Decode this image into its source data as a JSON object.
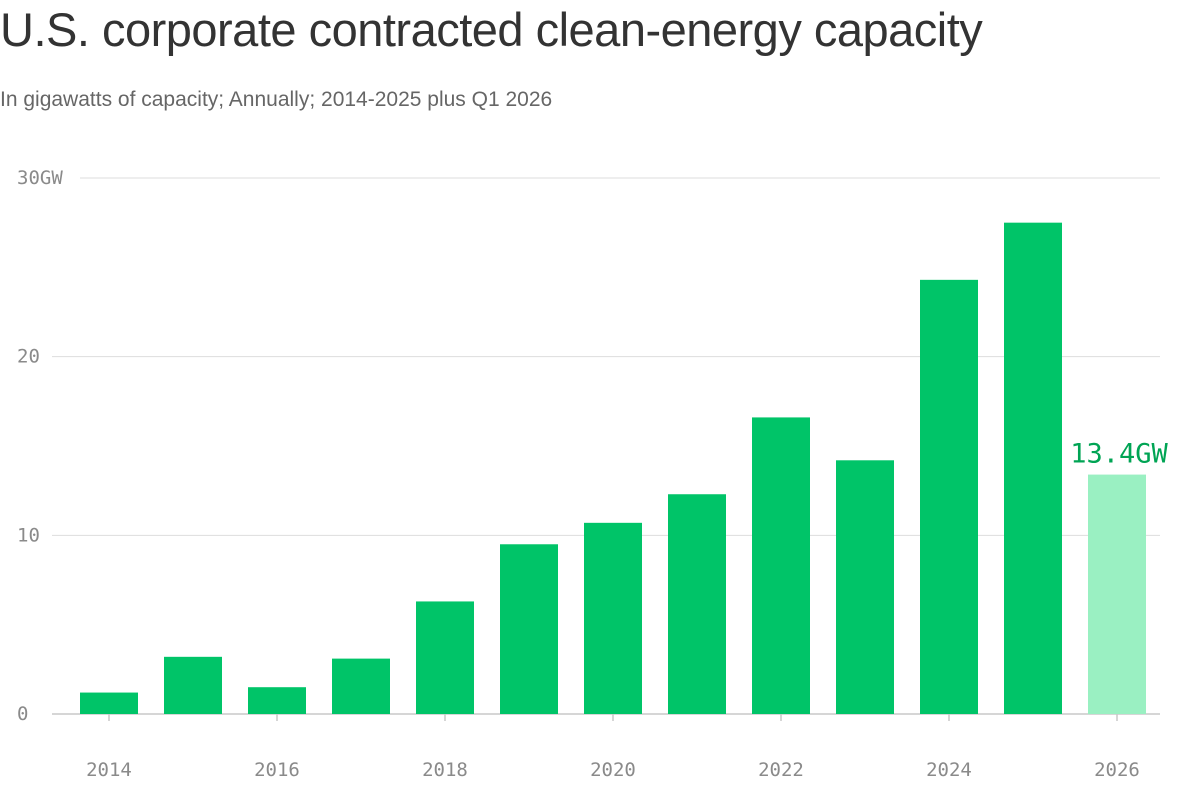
{
  "chart_data": {
    "type": "bar",
    "title": "U.S. corporate contracted clean-energy capacity",
    "subtitle": "In gigawatts of capacity; Annually; 2014-2025 plus Q1 2026",
    "categories": [
      "2014",
      "2015",
      "2016",
      "2017",
      "2018",
      "2019",
      "2020",
      "2021",
      "2022",
      "2023",
      "2024",
      "2025",
      "2026"
    ],
    "values": [
      1.2,
      3.2,
      1.5,
      3.1,
      6.3,
      9.5,
      10.7,
      12.3,
      16.6,
      14.2,
      24.3,
      27.5,
      13.4
    ],
    "highlight_index": 12,
    "highlight_label": "13.4GW",
    "ylim": [
      0,
      30
    ],
    "y_ticks": [
      0,
      10,
      20,
      30
    ],
    "y_tick_labels": [
      "0",
      "10",
      "20",
      "30GW"
    ],
    "x_tick_labels": [
      "2014",
      "2016",
      "2018",
      "2020",
      "2022",
      "2024",
      "2026"
    ],
    "xlabel": "",
    "ylabel": "",
    "grid": true,
    "colors": {
      "bar": "#00c468",
      "highlight_bar": "#9af0c2",
      "highlight_text": "#00a454",
      "grid": "#dddddd",
      "axis": "#c9c9c9"
    }
  }
}
